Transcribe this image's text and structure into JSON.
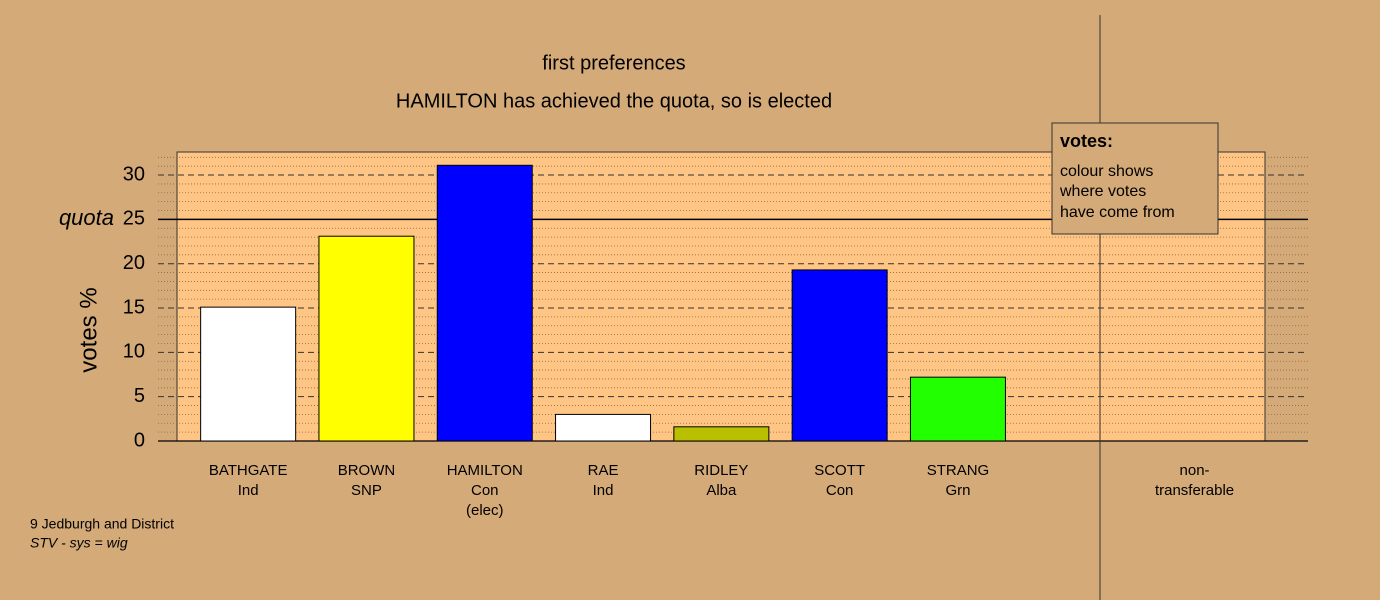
{
  "chart_data": {
    "type": "bar",
    "title": "first preferences",
    "subtitle": "HAMILTON has achieved the quota, so is elected",
    "ylabel": "votes %",
    "categories": [
      [
        "BATHGATE",
        "Ind"
      ],
      [
        "BROWN",
        "SNP"
      ],
      [
        "HAMILTON",
        "Con",
        "(elec)"
      ],
      [
        "RAE",
        "Ind"
      ],
      [
        "RIDLEY",
        "Alba"
      ],
      [
        "SCOTT",
        "Con"
      ],
      [
        "STRANG",
        "Grn"
      ],
      null,
      [
        "non-",
        "transferable"
      ]
    ],
    "values": [
      15.1,
      23.1,
      31.1,
      3.0,
      1.6,
      19.3,
      7.2,
      null,
      0
    ],
    "colors": [
      "#ffffff",
      "#ffff00",
      "#0000ff",
      "#ffffff",
      "#b8c000",
      "#0000ff",
      "#22ff00",
      null,
      null
    ],
    "ylim": [
      0,
      32.6
    ],
    "yticks": [
      0,
      5,
      10,
      15,
      20,
      25,
      30
    ],
    "grid": true,
    "minor_grid": true,
    "quota": 25,
    "quota_label": "quota",
    "legend": {
      "title": "votes:",
      "lines": [
        "colour shows",
        "where votes",
        "have come from"
      ]
    },
    "footer": [
      "9 Jedburgh and District",
      "STV - sys = wig"
    ]
  }
}
